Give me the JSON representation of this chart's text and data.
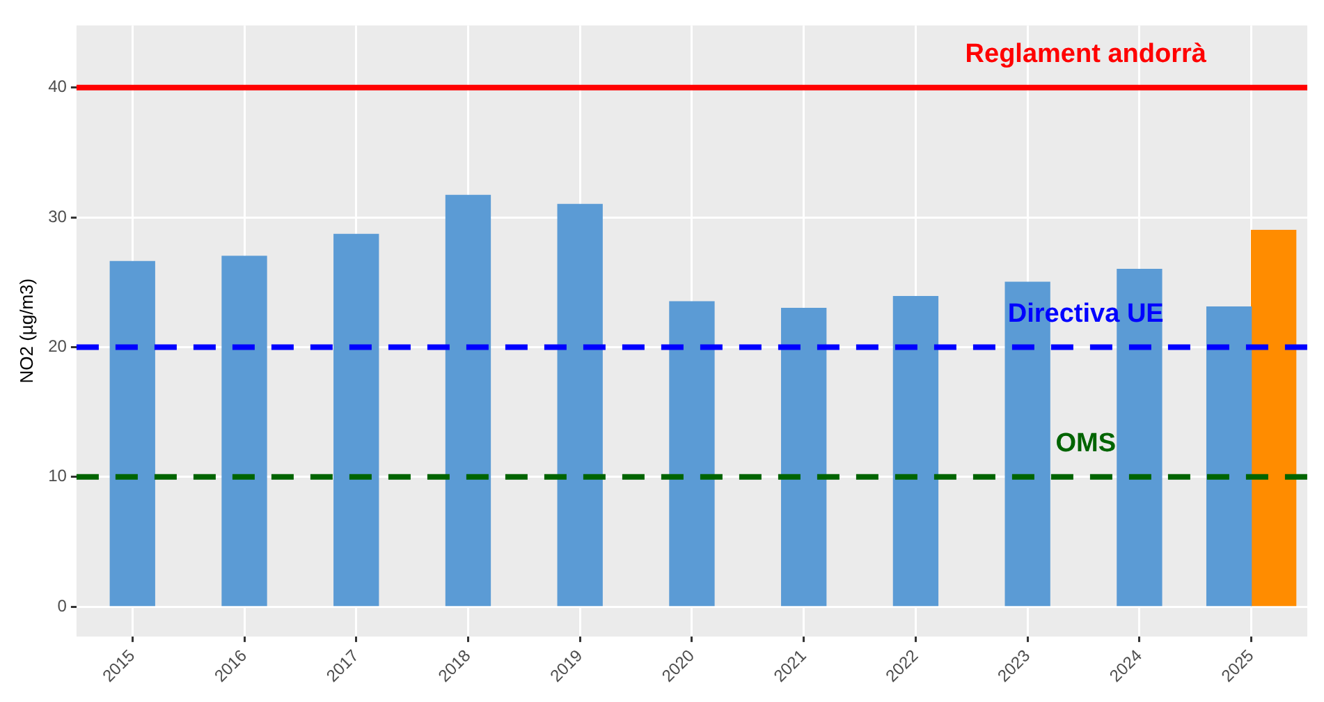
{
  "chart_data": {
    "type": "bar",
    "ylabel": "NO2 (µg/m3)",
    "categories": [
      "2015",
      "2016",
      "2017",
      "2018",
      "2019",
      "2020",
      "2021",
      "2022",
      "2023",
      "2024",
      "2025"
    ],
    "series": [
      {
        "color": "#5b9bd5",
        "values": [
          26.6,
          27.0,
          28.7,
          31.7,
          31.0,
          23.5,
          23.0,
          23.9,
          25.0,
          26.0,
          23.1
        ]
      },
      {
        "color": "#ff8c00",
        "values": [
          null,
          null,
          null,
          null,
          null,
          null,
          null,
          null,
          null,
          null,
          29.0
        ]
      }
    ],
    "ylim": [
      -2.3,
      44.8
    ],
    "yticks": [
      0,
      10,
      20,
      30,
      40
    ],
    "grid": true,
    "legend": false,
    "ref_lines": [
      {
        "axis": "y",
        "value": 40,
        "label": "Reglament andorrà",
        "color": "#ff0000",
        "line_style": "solid"
      },
      {
        "axis": "y",
        "value": 20,
        "label": "Directiva UE",
        "color": "#0000ff",
        "line_style": "dashed"
      },
      {
        "axis": "y",
        "value": 10,
        "label": "OMS",
        "color": "#006400",
        "line_style": "dashed"
      }
    ]
  }
}
